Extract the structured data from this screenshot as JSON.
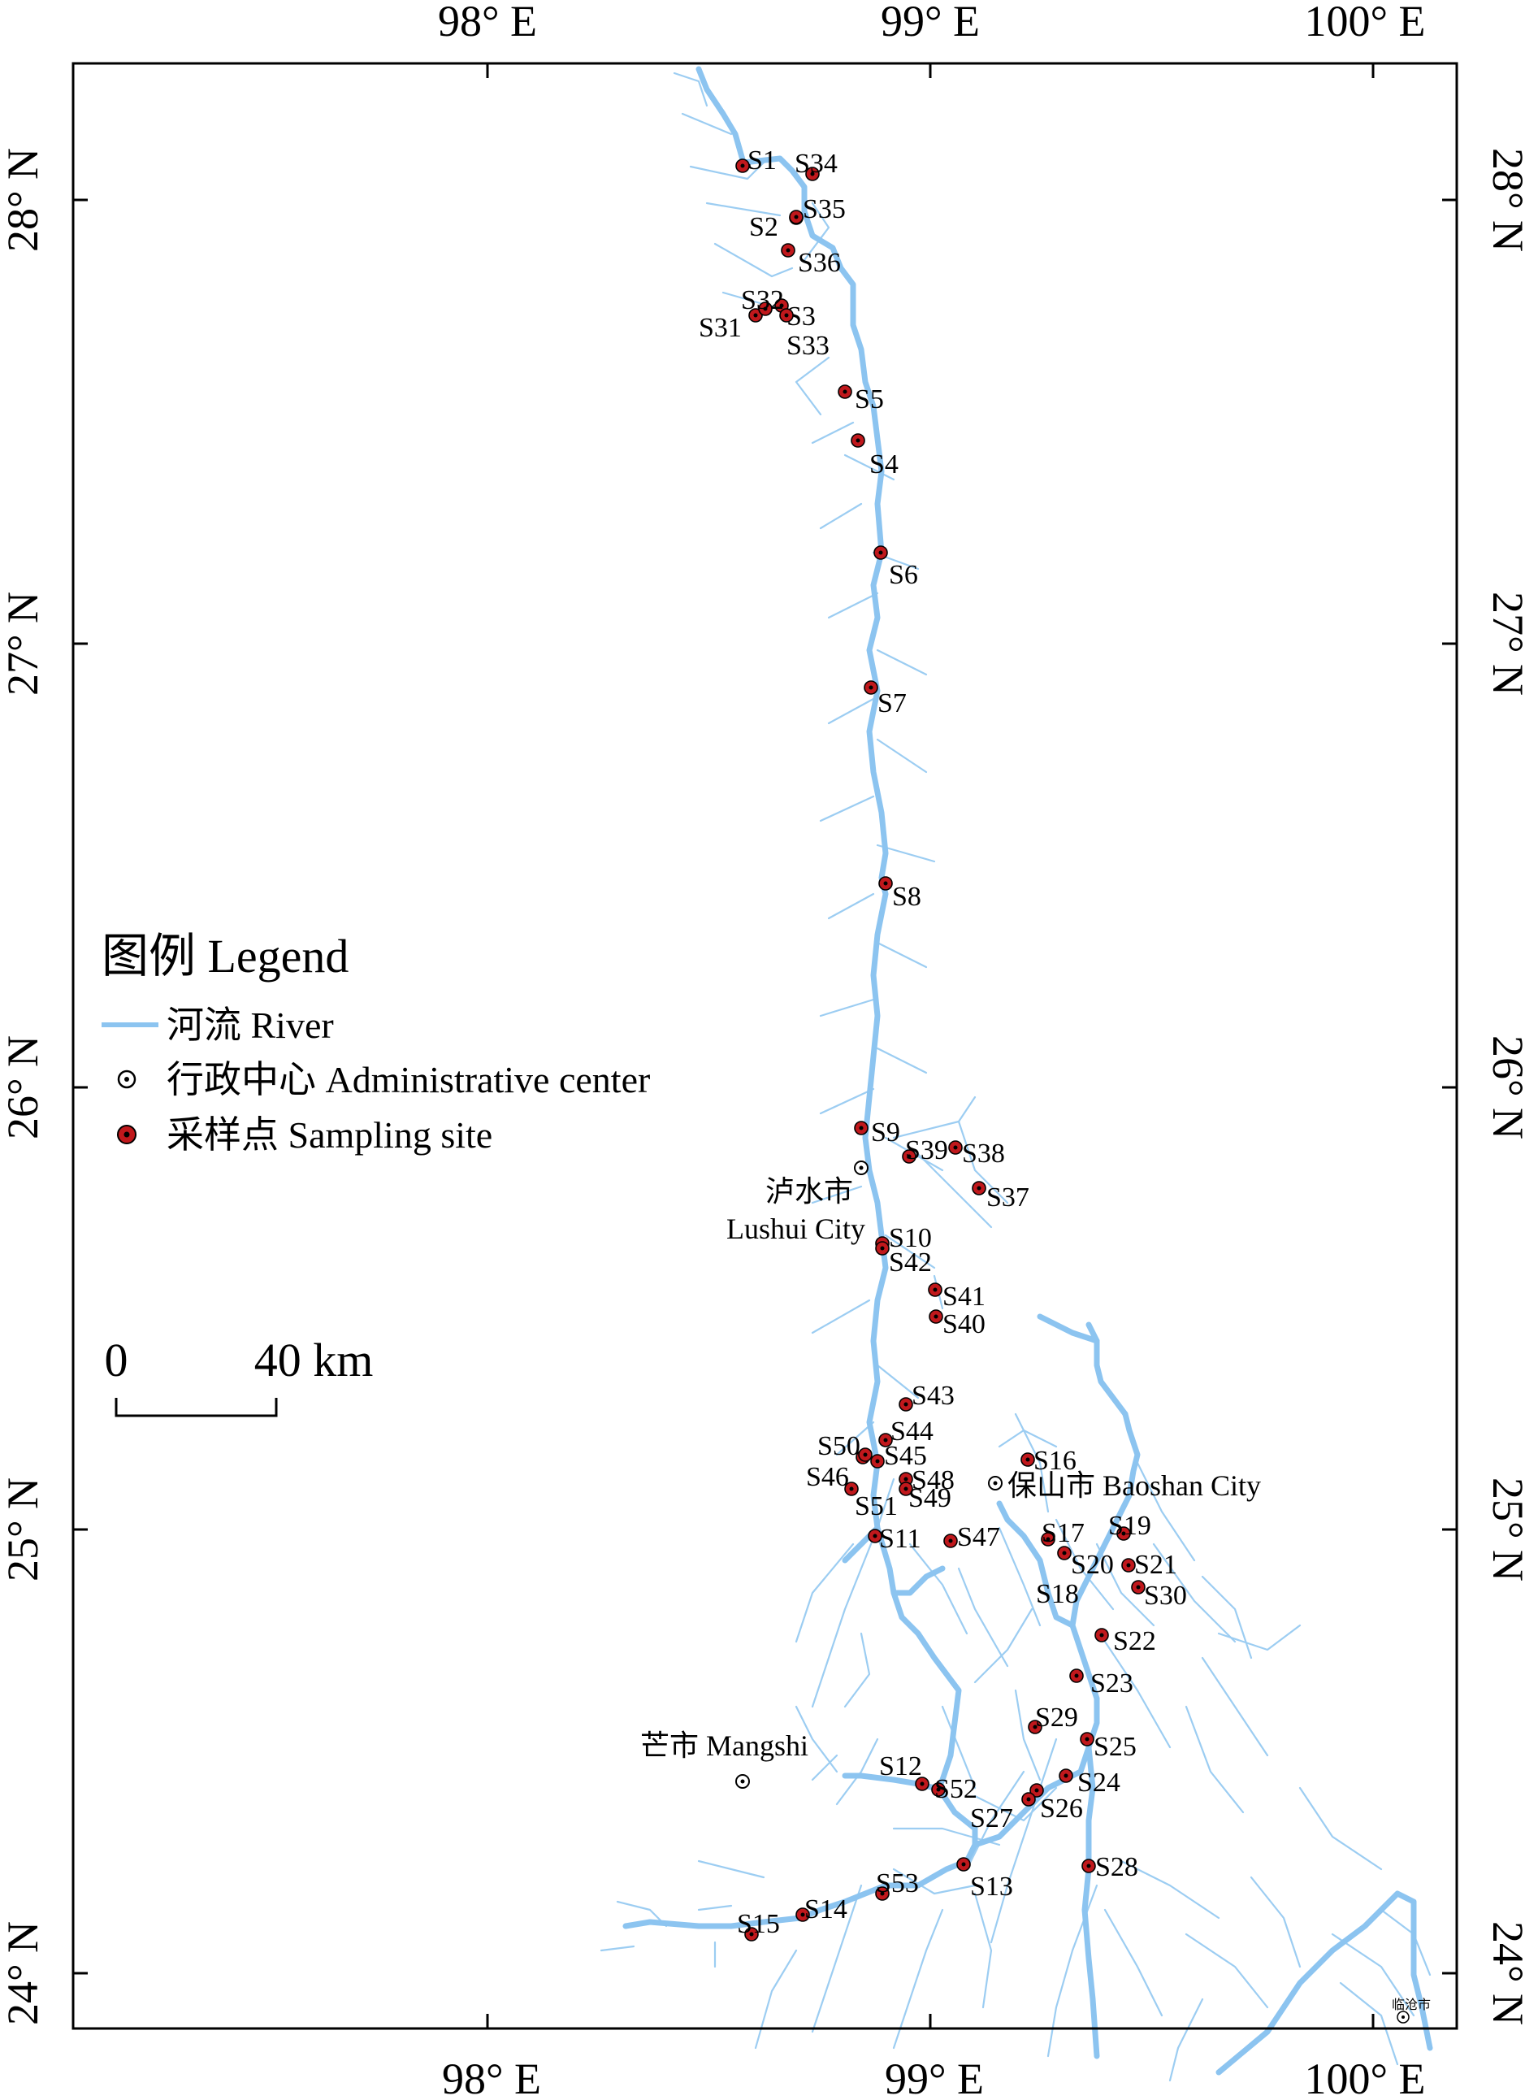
{
  "longitude_labels": [
    "98° E",
    "99° E",
    "100° E"
  ],
  "latitude_labels": [
    "28° N",
    "27° N",
    "26° N",
    "25° N",
    "24° N"
  ],
  "legend": {
    "title": "图例 Legend",
    "river": "河流 River",
    "admin_center": "行政中心 Administrative center",
    "sampling_site": "采样点 Sampling site"
  },
  "scale_bar": {
    "start": "0",
    "end": "40 km"
  },
  "colors": {
    "river": "#8cc4f0",
    "site_fill": "#c0181c",
    "frame": "#000000"
  },
  "cities": [
    {
      "name_zh": "泸水市",
      "name_en": "Lushui City"
    },
    {
      "name": "保山市 Baoshan City"
    },
    {
      "name": "芒市 Mangshi"
    },
    {
      "name": "临沧市"
    }
  ],
  "sites": [
    "S1",
    "S2",
    "S3",
    "S4",
    "S5",
    "S6",
    "S7",
    "S8",
    "S9",
    "S10",
    "S11",
    "S12",
    "S13",
    "S14",
    "S15",
    "S16",
    "S17",
    "S18",
    "S19",
    "S20",
    "S21",
    "S22",
    "S23",
    "S24",
    "S25",
    "S26",
    "S27",
    "S28",
    "S29",
    "S30",
    "S31",
    "S32",
    "S33",
    "S34",
    "S35",
    "S36",
    "S37",
    "S38",
    "S39",
    "S40",
    "S41",
    "S42",
    "S43",
    "S44",
    "S45",
    "S46",
    "S47",
    "S48",
    "S49",
    "S50",
    "S51",
    "S52",
    "S53"
  ]
}
